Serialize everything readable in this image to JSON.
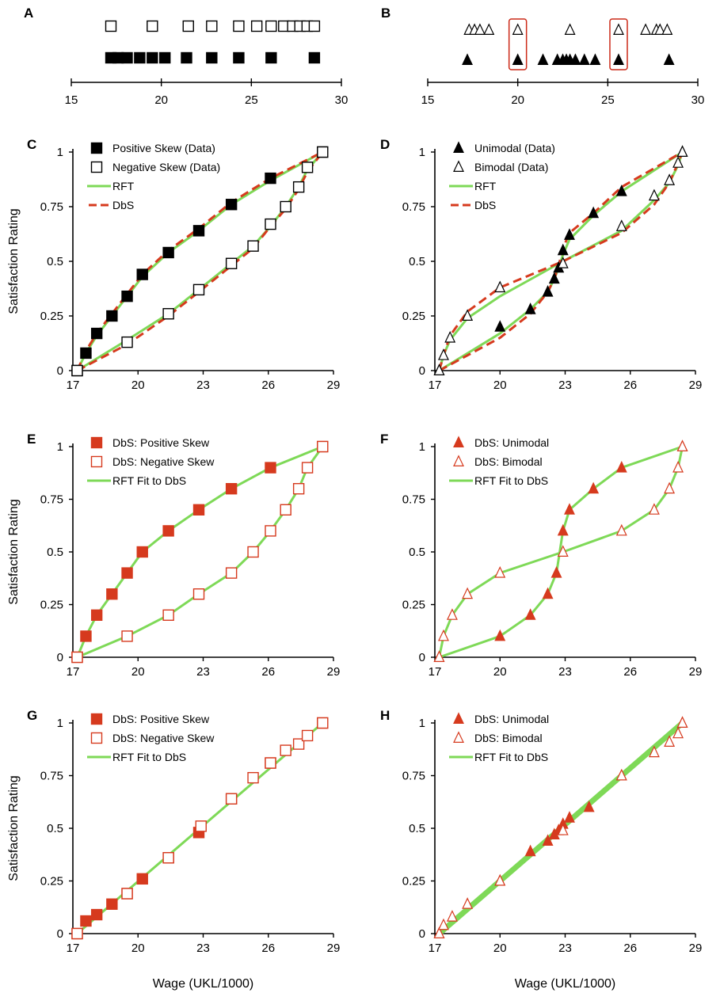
{
  "colors": {
    "data_black": "#000000",
    "rft_green": "#7ed957",
    "dbs_red": "#d63a1e",
    "box_red": "#cc2a18",
    "open_fill": "#ffffff"
  },
  "chart_data": [
    {
      "panel": "A",
      "type": "scatter",
      "xticks": [
        "15",
        "20",
        "25",
        "30"
      ],
      "xlim": [
        15,
        30
      ],
      "series": [
        {
          "key": "neg",
          "marker": "open-square",
          "row": "top",
          "x": [
            17.2,
            19.5,
            21.5,
            22.8,
            24.3,
            25.3,
            26.1,
            26.8,
            27.3,
            27.7,
            28.1,
            28.5
          ]
        },
        {
          "key": "pos",
          "marker": "filled-square",
          "row": "bottom",
          "x": [
            17.2,
            17.6,
            18.1,
            18.8,
            19.5,
            20.2,
            21.4,
            22.8,
            24.3,
            26.1,
            28.5
          ]
        }
      ]
    },
    {
      "panel": "B",
      "type": "scatter",
      "xticks": [
        "15",
        "20",
        "25",
        "30"
      ],
      "xlim": [
        15,
        30
      ],
      "highlight_x": [
        20,
        25.6
      ],
      "series": [
        {
          "key": "bi",
          "marker": "open-triangle",
          "row": "top",
          "x": [
            17.3,
            17.6,
            17.9,
            18.4,
            20,
            22.9,
            25.6,
            27.1,
            27.7,
            27.9,
            28.3
          ]
        },
        {
          "key": "uni",
          "marker": "filled-triangle",
          "row": "bottom",
          "x": [
            17.2,
            20,
            21.4,
            22.2,
            22.5,
            22.7,
            22.9,
            23.2,
            23.7,
            24.3,
            25.6,
            28.4
          ]
        }
      ]
    },
    {
      "panel": "C",
      "type": "line",
      "xticks": [
        "17",
        "20",
        "23",
        "26",
        "29"
      ],
      "yticks": [
        "0",
        "0.25",
        "0.5",
        "0.75",
        "1"
      ],
      "xlim": [
        17,
        29
      ],
      "ylim": [
        0,
        1
      ],
      "ylabel": "Satisfaction Rating",
      "xlabel": "",
      "legend": [
        "Positive Skew (Data)",
        "Negative Skew (Data)",
        "RFT",
        "DbS"
      ],
      "series": [
        {
          "key": "pos",
          "marker": "filled-square",
          "x": [
            17.2,
            17.6,
            18.1,
            18.8,
            19.5,
            20.2,
            21.4,
            22.8,
            24.3,
            26.1,
            28.5
          ],
          "y": [
            0,
            0.08,
            0.17,
            0.25,
            0.34,
            0.44,
            0.54,
            0.64,
            0.76,
            0.88,
            1
          ]
        },
        {
          "key": "neg",
          "marker": "open-square",
          "x": [
            17.2,
            19.5,
            21.4,
            22.8,
            24.3,
            25.3,
            26.1,
            26.8,
            27.4,
            27.8,
            28.5
          ],
          "y": [
            0,
            0.13,
            0.26,
            0.37,
            0.49,
            0.57,
            0.67,
            0.75,
            0.84,
            0.93,
            1
          ]
        }
      ],
      "lines": [
        {
          "key": "rft_pos",
          "style": "rft",
          "x": [
            17.2,
            17.6,
            18.1,
            18.8,
            19.5,
            20.2,
            21.4,
            22.8,
            24.3,
            26.1,
            28.5
          ],
          "y": [
            0,
            0.08,
            0.16,
            0.25,
            0.34,
            0.43,
            0.54,
            0.64,
            0.76,
            0.87,
            1
          ]
        },
        {
          "key": "rft_neg",
          "style": "rft",
          "x": [
            17.2,
            19.5,
            21.4,
            22.8,
            24.3,
            25.3,
            26.1,
            26.8,
            27.4,
            27.8,
            28.5
          ],
          "y": [
            0,
            0.14,
            0.26,
            0.37,
            0.49,
            0.57,
            0.66,
            0.75,
            0.84,
            0.92,
            1
          ]
        },
        {
          "key": "dbs_pos",
          "style": "dbs",
          "x": [
            17.2,
            17.6,
            18.1,
            18.8,
            19.5,
            20.2,
            21.4,
            22.8,
            24.3,
            26.1,
            28.5
          ],
          "y": [
            0,
            0.09,
            0.17,
            0.26,
            0.35,
            0.44,
            0.55,
            0.65,
            0.77,
            0.88,
            1
          ]
        },
        {
          "key": "dbs_neg",
          "style": "dbs",
          "x": [
            17.2,
            19.5,
            21.4,
            22.8,
            24.3,
            25.3,
            26.1,
            26.8,
            27.4,
            27.8,
            28.5
          ],
          "y": [
            0,
            0.12,
            0.25,
            0.36,
            0.48,
            0.56,
            0.66,
            0.74,
            0.83,
            0.91,
            1
          ]
        }
      ]
    },
    {
      "panel": "D",
      "type": "line",
      "xticks": [
        "17",
        "20",
        "23",
        "26",
        "29"
      ],
      "yticks": [
        "0",
        "0.25",
        "0.5",
        "0.75",
        "1"
      ],
      "xlim": [
        17,
        29
      ],
      "ylim": [
        0,
        1
      ],
      "ylabel": "",
      "xlabel": "",
      "legend": [
        "Unimodal (Data)",
        "Bimodal (Data)",
        "RFT",
        "DbS"
      ],
      "series": [
        {
          "key": "uni",
          "marker": "filled-triangle",
          "x": [
            17.2,
            20,
            21.4,
            22.2,
            22.5,
            22.7,
            22.9,
            23.2,
            24.3,
            25.6,
            28.4
          ],
          "y": [
            0,
            0.2,
            0.28,
            0.36,
            0.42,
            0.47,
            0.55,
            0.62,
            0.72,
            0.82,
            1
          ]
        },
        {
          "key": "bi",
          "marker": "open-triangle",
          "x": [
            17.2,
            17.4,
            17.7,
            18.5,
            20,
            22.9,
            25.6,
            27.1,
            27.8,
            28.2,
            28.4
          ],
          "y": [
            0,
            0.07,
            0.15,
            0.25,
            0.38,
            0.49,
            0.66,
            0.8,
            0.87,
            0.95,
            1
          ]
        }
      ],
      "lines": [
        {
          "key": "rft_uni",
          "style": "rft",
          "x": [
            17.2,
            20,
            21.4,
            22.2,
            22.5,
            22.7,
            22.9,
            23.2,
            24.3,
            25.6,
            28.4
          ],
          "y": [
            0,
            0.17,
            0.28,
            0.36,
            0.42,
            0.47,
            0.53,
            0.6,
            0.71,
            0.82,
            1
          ]
        },
        {
          "key": "rft_bi",
          "style": "rft",
          "x": [
            17.2,
            17.4,
            17.7,
            18.5,
            20,
            22.9,
            25.6,
            27.1,
            27.8,
            28.2,
            28.4
          ],
          "y": [
            0,
            0.07,
            0.14,
            0.24,
            0.34,
            0.5,
            0.64,
            0.78,
            0.86,
            0.94,
            1
          ]
        },
        {
          "key": "dbs_uni",
          "style": "dbs",
          "x": [
            17.2,
            20,
            21.4,
            22.2,
            22.5,
            22.7,
            22.9,
            23.2,
            24.3,
            25.6,
            28.4
          ],
          "y": [
            0,
            0.15,
            0.26,
            0.36,
            0.42,
            0.48,
            0.56,
            0.63,
            0.72,
            0.84,
            1
          ]
        },
        {
          "key": "dbs_bi",
          "style": "dbs",
          "x": [
            17.2,
            17.4,
            17.7,
            18.5,
            20,
            22.9,
            25.6,
            27.1,
            27.8,
            28.2,
            28.4
          ],
          "y": [
            0,
            0.07,
            0.16,
            0.27,
            0.38,
            0.5,
            0.63,
            0.76,
            0.86,
            0.95,
            1
          ]
        }
      ]
    },
    {
      "panel": "E",
      "type": "line",
      "xticks": [
        "17",
        "20",
        "23",
        "26",
        "29"
      ],
      "yticks": [
        "0",
        "0.25",
        "0.5",
        "0.75",
        "1"
      ],
      "xlim": [
        17,
        29
      ],
      "ylim": [
        0,
        1
      ],
      "ylabel": "Satisfaction Rating",
      "xlabel": "",
      "legend": [
        "DbS: Positive Skew",
        "DbS: Negative Skew",
        "RFT Fit to DbS"
      ],
      "series": [
        {
          "key": "pos",
          "marker": "red-filled-square",
          "x": [
            17.2,
            17.6,
            18.1,
            18.8,
            19.5,
            20.2,
            21.4,
            22.8,
            24.3,
            26.1,
            28.5
          ],
          "y": [
            0,
            0.1,
            0.2,
            0.3,
            0.4,
            0.5,
            0.6,
            0.7,
            0.8,
            0.9,
            1
          ]
        },
        {
          "key": "neg",
          "marker": "red-open-square",
          "x": [
            17.2,
            19.5,
            21.4,
            22.8,
            24.3,
            25.3,
            26.1,
            26.8,
            27.4,
            27.8,
            28.5
          ],
          "y": [
            0,
            0.1,
            0.2,
            0.3,
            0.4,
            0.5,
            0.6,
            0.7,
            0.8,
            0.9,
            1
          ]
        }
      ],
      "lines": [
        {
          "key": "rft_pos",
          "style": "rft",
          "x": [
            17.2,
            17.6,
            18.1,
            18.8,
            19.5,
            20.2,
            21.4,
            22.8,
            24.3,
            26.1,
            28.5
          ],
          "y": [
            0,
            0.1,
            0.2,
            0.3,
            0.4,
            0.5,
            0.6,
            0.7,
            0.8,
            0.9,
            1
          ]
        },
        {
          "key": "rft_neg",
          "style": "rft",
          "x": [
            17.2,
            19.5,
            21.4,
            22.8,
            24.3,
            25.3,
            26.1,
            26.8,
            27.4,
            27.8,
            28.5
          ],
          "y": [
            0,
            0.1,
            0.2,
            0.3,
            0.4,
            0.5,
            0.6,
            0.7,
            0.8,
            0.9,
            1
          ]
        }
      ]
    },
    {
      "panel": "F",
      "type": "line",
      "xticks": [
        "17",
        "20",
        "23",
        "26",
        "29"
      ],
      "yticks": [
        "0",
        "0.25",
        "0.5",
        "0.75",
        "1"
      ],
      "xlim": [
        17,
        29
      ],
      "ylim": [
        0,
        1
      ],
      "ylabel": "",
      "xlabel": "",
      "legend": [
        "DbS: Unimodal",
        "DbS: Bimodal",
        "RFT Fit to DbS"
      ],
      "series": [
        {
          "key": "uni",
          "marker": "red-filled-triangle",
          "x": [
            17.2,
            20,
            21.4,
            22.2,
            22.6,
            22.9,
            23.2,
            24.3,
            25.6,
            28.4
          ],
          "y": [
            0,
            0.1,
            0.2,
            0.3,
            0.4,
            0.6,
            0.7,
            0.8,
            0.9,
            1
          ]
        },
        {
          "key": "bi",
          "marker": "red-open-triangle",
          "x": [
            17.2,
            17.4,
            17.8,
            18.5,
            20,
            22.9,
            25.6,
            27.1,
            27.8,
            28.2,
            28.4
          ],
          "y": [
            0,
            0.1,
            0.2,
            0.3,
            0.4,
            0.5,
            0.6,
            0.7,
            0.8,
            0.9,
            1
          ]
        }
      ],
      "lines": [
        {
          "key": "rft_uni",
          "style": "rft",
          "x": [
            17.2,
            20,
            21.4,
            22.2,
            22.6,
            22.9,
            23.2,
            24.3,
            25.6,
            28.4
          ],
          "y": [
            0,
            0.1,
            0.2,
            0.3,
            0.4,
            0.6,
            0.7,
            0.8,
            0.9,
            1
          ]
        },
        {
          "key": "rft_bi",
          "style": "rft",
          "x": [
            17.2,
            17.4,
            17.8,
            18.5,
            20,
            22.9,
            25.6,
            27.1,
            27.8,
            28.2,
            28.4
          ],
          "y": [
            0,
            0.1,
            0.2,
            0.3,
            0.4,
            0.5,
            0.6,
            0.7,
            0.8,
            0.9,
            1
          ]
        }
      ]
    },
    {
      "panel": "G",
      "type": "line",
      "xticks": [
        "17",
        "20",
        "23",
        "26",
        "29"
      ],
      "yticks": [
        "0",
        "0.25",
        "0.5",
        "0.75",
        "1"
      ],
      "xlim": [
        17,
        29
      ],
      "ylim": [
        0,
        1
      ],
      "ylabel": "Satisfaction Rating",
      "xlabel": "Wage (UKL/1000)",
      "legend": [
        "DbS: Positive Skew",
        "DbS: Negative Skew",
        "RFT Fit to DbS"
      ],
      "series": [
        {
          "key": "pos",
          "marker": "red-filled-square",
          "x": [
            17.2,
            17.6,
            18.1,
            18.8,
            19.5,
            20.2,
            21.4,
            22.8,
            24.3,
            26.1,
            28.5
          ],
          "y": [
            0,
            0.06,
            0.09,
            0.14,
            0.19,
            0.26,
            0.36,
            0.48,
            0.64,
            0.81,
            1
          ]
        },
        {
          "key": "neg",
          "marker": "red-open-square",
          "x": [
            17.2,
            19.5,
            21.4,
            22.9,
            24.3,
            25.3,
            26.1,
            26.8,
            27.4,
            27.8,
            28.5
          ],
          "y": [
            0,
            0.19,
            0.36,
            0.51,
            0.64,
            0.74,
            0.81,
            0.87,
            0.9,
            0.94,
            1
          ]
        }
      ],
      "lines": [
        {
          "key": "rft_all",
          "style": "rft",
          "x": [
            17.2,
            28.5
          ],
          "y": [
            0,
            1
          ]
        }
      ]
    },
    {
      "panel": "H",
      "type": "line",
      "xticks": [
        "17",
        "20",
        "23",
        "26",
        "29"
      ],
      "yticks": [
        "0",
        "0.25",
        "0.5",
        "0.75",
        "1"
      ],
      "xlim": [
        17,
        29
      ],
      "ylim": [
        0,
        1
      ],
      "ylabel": "",
      "xlabel": "Wage (UKL/1000)",
      "legend": [
        "DbS: Unimodal",
        "DbS: Bimodal",
        "RFT Fit to DbS"
      ],
      "series": [
        {
          "key": "uni",
          "marker": "red-filled-triangle",
          "x": [
            17.2,
            20,
            21.4,
            22.2,
            22.5,
            22.7,
            22.9,
            23.2,
            24.1,
            25.6,
            28.4
          ],
          "y": [
            0,
            0.25,
            0.39,
            0.44,
            0.47,
            0.49,
            0.52,
            0.55,
            0.6,
            0.75,
            1
          ]
        },
        {
          "key": "bi",
          "marker": "red-open-triangle",
          "x": [
            17.2,
            17.4,
            17.8,
            18.5,
            20,
            22.9,
            25.6,
            27.1,
            27.8,
            28.2,
            28.4
          ],
          "y": [
            0,
            0.04,
            0.08,
            0.14,
            0.25,
            0.49,
            0.75,
            0.86,
            0.91,
            0.95,
            1
          ]
        }
      ],
      "lines": [
        {
          "key": "rft_all",
          "style": "rft-thick",
          "x": [
            17.2,
            28.4
          ],
          "y": [
            0,
            1
          ]
        }
      ]
    }
  ]
}
